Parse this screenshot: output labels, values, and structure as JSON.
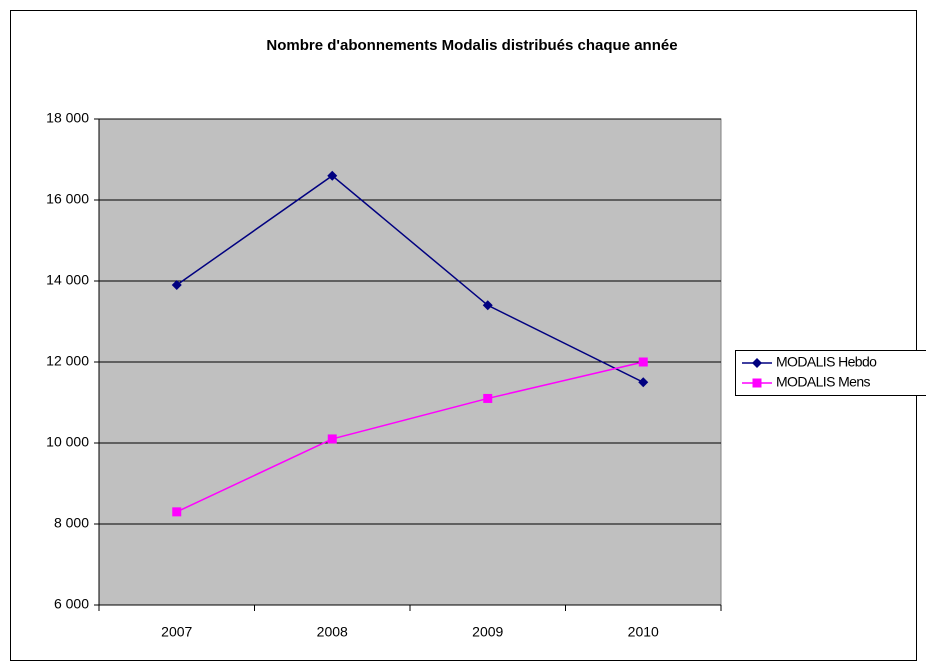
{
  "chart_data": {
    "type": "line",
    "title": "Nombre d'abonnements Modalis distribués chaque année",
    "categories": [
      "2007",
      "2008",
      "2009",
      "2010"
    ],
    "series": [
      {
        "name": "MODALIS Hebdo",
        "color": "#000080",
        "marker": "diamond",
        "values": [
          13900,
          16600,
          13400,
          11500
        ]
      },
      {
        "name": "MODALIS Mens",
        "color": "#ff00ff",
        "marker": "square",
        "values": [
          8300,
          10100,
          11100,
          12000
        ]
      }
    ],
    "ylim": [
      6000,
      18000
    ],
    "yticks": [
      {
        "value": 6000,
        "label": "6 000"
      },
      {
        "value": 8000,
        "label": "8 000"
      },
      {
        "value": 10000,
        "label": "10 000"
      },
      {
        "value": 12000,
        "label": "12 000"
      },
      {
        "value": 14000,
        "label": "14 000"
      },
      {
        "value": 16000,
        "label": "16 000"
      },
      {
        "value": 18000,
        "label": "18 000"
      }
    ],
    "grid": true,
    "legend": "right"
  }
}
